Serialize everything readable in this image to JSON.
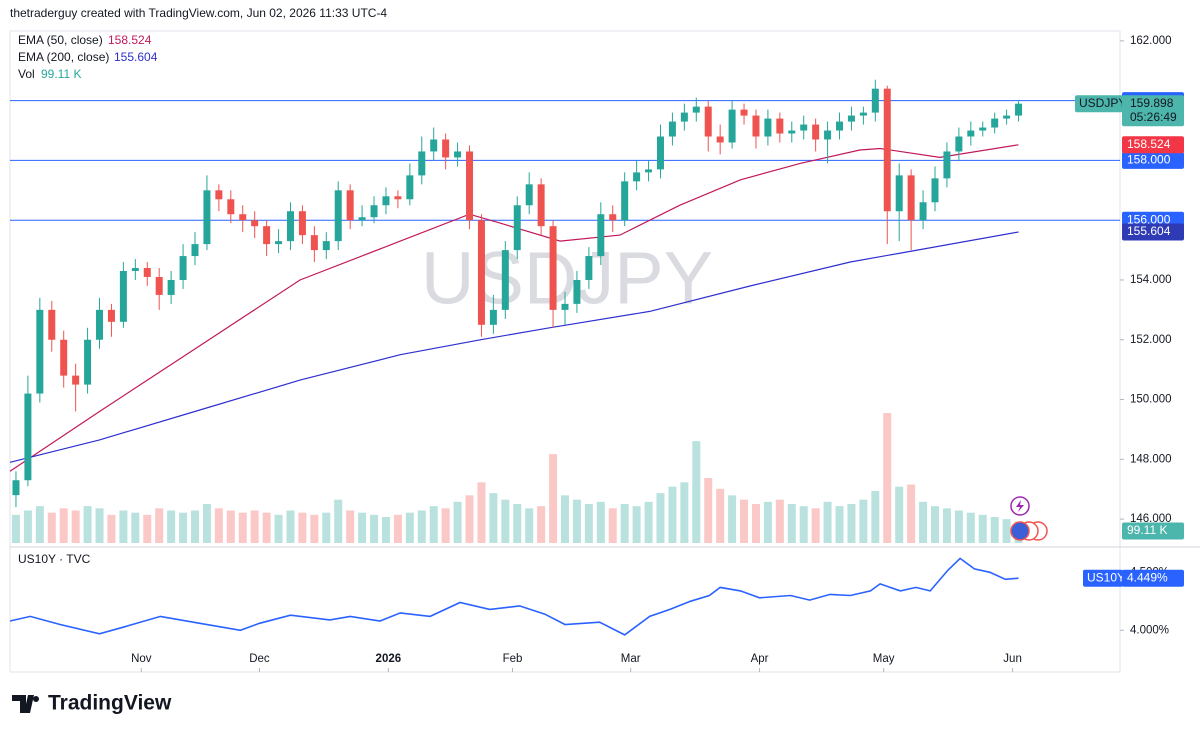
{
  "header": "thetraderguy created with TradingView.com, Jun 02, 2026 11:33 UTC-4",
  "chart_data": [
    {
      "type": "candlestick",
      "symbol": "USDJPY",
      "up_color": "#26a69a",
      "down_color": "#ef5350",
      "open": [
        146.8,
        147.3,
        150.2,
        153.0,
        152.0,
        150.8,
        150.5,
        152.0,
        153.0,
        152.6,
        154.3,
        154.4,
        154.1,
        153.5,
        154.0,
        154.8,
        155.2,
        157.0,
        156.7,
        156.2,
        156.0,
        155.8,
        155.2,
        155.3,
        156.3,
        155.5,
        155.0,
        155.3,
        157.0,
        156.0,
        156.1,
        156.5,
        156.8,
        156.7,
        157.5,
        158.3,
        158.7,
        158.1,
        158.3,
        156.0,
        152.5,
        153.0,
        155.0,
        156.5,
        157.2,
        155.8,
        153.0,
        153.2,
        154.0,
        154.8,
        156.2,
        156.0,
        157.3,
        157.6,
        157.7,
        158.8,
        159.3,
        159.6,
        159.8,
        158.8,
        158.6,
        159.7,
        159.5,
        158.8,
        159.4,
        158.9,
        159.0,
        159.2,
        158.7,
        159.0,
        159.3,
        159.5,
        159.6,
        160.4,
        156.3,
        157.5,
        156.0,
        156.6,
        157.4,
        158.3,
        158.8,
        159.0,
        159.1,
        159.4,
        159.5
      ],
      "high": [
        147.6,
        150.8,
        153.4,
        153.3,
        152.3,
        151.2,
        152.4,
        153.4,
        153.2,
        154.6,
        154.7,
        154.6,
        154.4,
        154.3,
        155.2,
        155.6,
        157.5,
        157.2,
        157.0,
        156.5,
        156.3,
        156.0,
        155.7,
        156.6,
        156.5,
        155.8,
        155.6,
        157.3,
        157.2,
        156.5,
        156.8,
        157.1,
        157.0,
        157.9,
        158.8,
        159.1,
        158.9,
        158.6,
        158.5,
        156.2,
        153.5,
        155.3,
        156.8,
        157.6,
        157.4,
        156.0,
        153.6,
        154.3,
        155.1,
        156.6,
        156.5,
        157.6,
        158.0,
        158.0,
        159.2,
        159.6,
        159.9,
        160.1,
        160.0,
        159.2,
        160.0,
        159.9,
        159.7,
        159.7,
        159.6,
        159.3,
        159.5,
        159.4,
        159.3,
        159.6,
        159.8,
        159.8,
        160.7,
        160.5,
        157.9,
        157.7,
        157.0,
        157.8,
        158.6,
        159.1,
        159.3,
        159.3,
        159.6,
        159.7,
        160.0
      ],
      "low": [
        146.4,
        147.1,
        149.9,
        151.6,
        150.4,
        149.6,
        150.2,
        151.7,
        152.1,
        152.4,
        154.0,
        153.8,
        153.0,
        153.2,
        153.7,
        154.5,
        155.0,
        156.3,
        155.9,
        155.6,
        155.4,
        154.8,
        154.9,
        155.0,
        155.2,
        154.6,
        154.7,
        155.0,
        155.7,
        155.8,
        155.9,
        156.2,
        156.4,
        156.5,
        157.2,
        158.0,
        157.7,
        157.8,
        155.7,
        152.1,
        152.2,
        152.7,
        154.7,
        156.2,
        155.5,
        152.4,
        152.5,
        152.9,
        153.7,
        154.5,
        155.6,
        155.8,
        157.0,
        157.3,
        157.4,
        158.5,
        159.0,
        159.3,
        158.3,
        158.2,
        158.4,
        159.2,
        158.4,
        158.5,
        158.6,
        158.6,
        158.7,
        158.3,
        157.9,
        158.7,
        159.0,
        159.2,
        159.3,
        155.2,
        155.3,
        155.0,
        155.7,
        156.3,
        157.1,
        158.0,
        158.5,
        158.8,
        158.9,
        159.2,
        159.3
      ],
      "close": [
        147.3,
        150.2,
        153.0,
        152.0,
        150.8,
        150.5,
        152.0,
        153.0,
        152.6,
        154.3,
        154.4,
        154.1,
        153.5,
        154.0,
        154.8,
        155.2,
        157.0,
        156.7,
        156.2,
        156.0,
        155.8,
        155.2,
        155.3,
        156.3,
        155.5,
        155.0,
        155.3,
        157.0,
        156.0,
        156.1,
        156.5,
        156.8,
        156.7,
        157.5,
        158.3,
        158.7,
        158.1,
        158.3,
        156.0,
        152.5,
        153.0,
        155.0,
        156.5,
        157.2,
        155.8,
        153.0,
        153.2,
        154.0,
        154.8,
        156.2,
        156.0,
        157.3,
        157.6,
        157.7,
        158.8,
        159.3,
        159.6,
        159.8,
        158.8,
        158.6,
        159.7,
        159.5,
        158.8,
        159.4,
        158.9,
        159.0,
        159.2,
        158.7,
        159.0,
        159.3,
        159.5,
        159.6,
        160.4,
        156.3,
        157.5,
        156.0,
        156.6,
        157.4,
        158.3,
        158.8,
        159.0,
        159.1,
        159.4,
        159.5,
        159.898
      ],
      "countdown": "05:26:49",
      "xlim": [
        -0.5,
        92.5
      ],
      "xticks": [
        {
          "value": 10.5,
          "label": "Nov"
        },
        {
          "value": 20.4,
          "label": "Dec"
        },
        {
          "value": 31.2,
          "label": "2026"
        },
        {
          "value": 41.6,
          "label": "Feb"
        },
        {
          "value": 51.5,
          "label": "Mar"
        },
        {
          "value": 62.3,
          "label": "Apr"
        },
        {
          "value": 72.7,
          "label": "May"
        },
        {
          "value": 83.5,
          "label": "Jun"
        }
      ],
      "ylim": [
        145.2,
        162.33
      ],
      "yticks": [
        {
          "value": 162,
          "label": "162.000"
        },
        {
          "value": 154,
          "label": "154.000"
        },
        {
          "value": 152,
          "label": "152.000"
        },
        {
          "value": 150,
          "label": "150.000"
        },
        {
          "value": 148,
          "label": "148.000"
        },
        {
          "value": 146,
          "label": "146.000"
        }
      ],
      "levels": [
        {
          "value": 160,
          "label": "160.000"
        },
        {
          "value": 158,
          "label": "158.000"
        },
        {
          "value": 156,
          "label": "156.000"
        }
      ],
      "level_color": "#2962ff",
      "series": [
        {
          "name": "EMA (50, close)",
          "color": "#c2185b",
          "x": [
            -0.5,
            7.0,
            15.4,
            23.8,
            32.2,
            38.0,
            40.6,
            45.6,
            50.6,
            55.6,
            60.7,
            65.7,
            70.7,
            72.4,
            77.4,
            84
          ],
          "values": [
            147.6,
            149.6,
            151.8,
            154.0,
            155.3,
            156.2,
            155.9,
            155.3,
            155.5,
            156.5,
            157.35,
            157.9,
            158.35,
            158.4,
            158.1,
            158.524
          ]
        },
        {
          "name": "EMA (200, close)",
          "color": "#2f2fd0",
          "x": [
            -0.5,
            7.0,
            15.4,
            23.8,
            32.2,
            38.9,
            44.7,
            53.1,
            61.5,
            69.9,
            74.1,
            84
          ],
          "values": [
            147.9,
            148.65,
            149.65,
            150.65,
            151.5,
            152.0,
            152.4,
            152.95,
            153.8,
            154.6,
            154.9,
            155.604
          ]
        }
      ],
      "volume": {
        "name": "Vol",
        "last_label": "99.11 K",
        "values": [
          130,
          150,
          170,
          140,
          160,
          150,
          170,
          160,
          130,
          150,
          140,
          130,
          160,
          150,
          140,
          150,
          180,
          160,
          150,
          140,
          150,
          140,
          130,
          150,
          140,
          130,
          140,
          200,
          150,
          140,
          130,
          120,
          130,
          140,
          150,
          170,
          160,
          190,
          220,
          280,
          230,
          200,
          180,
          160,
          170,
          410,
          220,
          200,
          180,
          190,
          160,
          180,
          170,
          190,
          230,
          260,
          280,
          470,
          300,
          250,
          220,
          200,
          180,
          190,
          200,
          180,
          170,
          160,
          190,
          170,
          180,
          200,
          240,
          600,
          260,
          270,
          190,
          170,
          160,
          150,
          140,
          130,
          120,
          110,
          99.11
        ]
      }
    },
    {
      "type": "line",
      "title": "US10Y · TVC",
      "symbol": "US10Y",
      "ylim": [
        3.64,
        4.71
      ],
      "yticks": [
        {
          "value": 4.5,
          "label": "4.500%"
        },
        {
          "value": 4.0,
          "label": "4.000%"
        }
      ],
      "series": [
        {
          "name": "US10Y",
          "color": "#2962ff",
          "last_label": "4.449%",
          "x": [
            -0.5,
            1.2,
            3.7,
            7.0,
            9.1,
            12.1,
            15.4,
            18.8,
            20.4,
            23.0,
            26.3,
            28.0,
            30.5,
            32.2,
            34.7,
            37.2,
            39.7,
            42.2,
            44.3,
            46.0,
            48.9,
            51.0,
            53.1,
            54.8,
            56.5,
            58.1,
            59.0,
            60.7,
            62.3,
            64.9,
            66.5,
            68.2,
            69.9,
            71.6,
            72.4,
            74.1,
            75.4,
            76.6,
            78.1,
            79.1,
            80.3,
            81.6,
            82.9,
            84
          ],
          "values": [
            4.08,
            4.12,
            4.05,
            3.97,
            4.03,
            4.12,
            4.06,
            4.0,
            4.06,
            4.13,
            4.09,
            4.12,
            4.08,
            4.15,
            4.12,
            4.24,
            4.18,
            4.21,
            4.14,
            4.05,
            4.07,
            3.96,
            4.12,
            4.18,
            4.25,
            4.3,
            4.37,
            4.34,
            4.28,
            4.3,
            4.26,
            4.31,
            4.3,
            4.34,
            4.4,
            4.34,
            4.37,
            4.34,
            4.52,
            4.62,
            4.53,
            4.5,
            4.44,
            4.449
          ]
        }
      ]
    }
  ],
  "footer": "TradingView"
}
